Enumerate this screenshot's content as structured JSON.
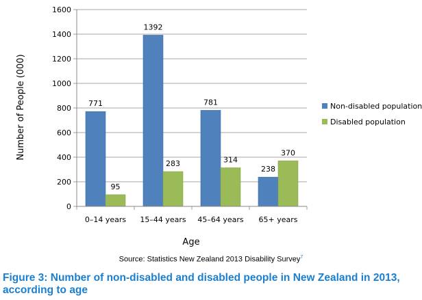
{
  "chart_data": {
    "type": "bar",
    "categories": [
      "0–14 years",
      "15–44 years",
      "45–64 years",
      "65+ years"
    ],
    "series": [
      {
        "name": "Non-disabled population",
        "values": [
          771,
          1392,
          781,
          238
        ],
        "color": "#4f81bd"
      },
      {
        "name": "Disabled population",
        "values": [
          95,
          283,
          314,
          370
        ],
        "color": "#9bbb59"
      }
    ],
    "xlabel": "Age",
    "ylabel": "Number of People (000)",
    "ylim": [
      0,
      1600
    ],
    "yticks": [
      0,
      200,
      400,
      600,
      800,
      1000,
      1200,
      1400,
      1600
    ],
    "grid": true,
    "legend_position": "right"
  },
  "source": {
    "text": "Source: Statistics New Zealand 2013 Disability Survey",
    "footnote": "7"
  },
  "caption": "Figure 3: Number of non-disabled and disabled people in New Zealand in 2013, according to age"
}
